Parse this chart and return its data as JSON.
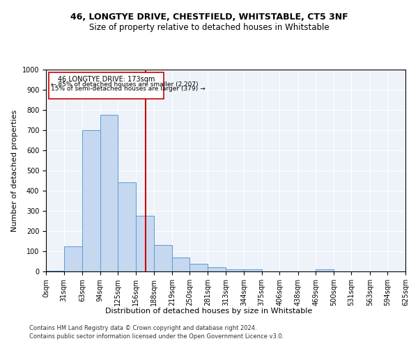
{
  "title": "46, LONGTYE DRIVE, CHESTFIELD, WHITSTABLE, CT5 3NF",
  "subtitle": "Size of property relative to detached houses in Whitstable",
  "xlabel": "Distribution of detached houses by size in Whitstable",
  "ylabel": "Number of detached properties",
  "footer_line1": "Contains HM Land Registry data © Crown copyright and database right 2024.",
  "footer_line2": "Contains public sector information licensed under the Open Government Licence v3.0.",
  "annotation_line1": "46 LONGTYE DRIVE: 173sqm",
  "annotation_line2": "← 85% of detached houses are smaller (2,207)",
  "annotation_line3": "15% of semi-detached houses are larger (379) →",
  "property_size": 173,
  "bar_color": "#c5d8f0",
  "bar_edge_color": "#5b9bd5",
  "red_line_color": "#cc0000",
  "annotation_box_color": "#cc0000",
  "background_color": "#eef2f9",
  "bin_edges": [
    0,
    31,
    63,
    94,
    125,
    156,
    188,
    219,
    250,
    281,
    313,
    344,
    375,
    406,
    438,
    469,
    500,
    531,
    563,
    594,
    625
  ],
  "bar_values": [
    5,
    125,
    700,
    775,
    440,
    275,
    130,
    70,
    37,
    20,
    10,
    10,
    0,
    0,
    0,
    10,
    0,
    0,
    0,
    0
  ],
  "ylim": [
    0,
    1000
  ],
  "yticks": [
    0,
    100,
    200,
    300,
    400,
    500,
    600,
    700,
    800,
    900,
    1000
  ],
  "grid_color": "#ffffff",
  "title_fontsize": 9,
  "subtitle_fontsize": 8.5,
  "tick_fontsize": 7,
  "label_fontsize": 8,
  "footer_fontsize": 6
}
